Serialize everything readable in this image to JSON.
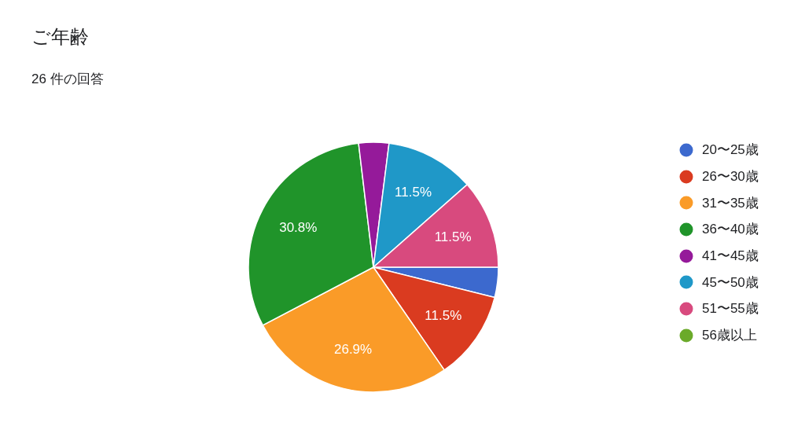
{
  "chart_data": {
    "type": "pie",
    "title": "ご年齢",
    "subtitle": "26 件の回答",
    "categories": [
      "20〜25歳",
      "26〜30歳",
      "31〜35歳",
      "36〜40歳",
      "41〜45歳",
      "45〜50歳",
      "51〜55歳",
      "56歳以上"
    ],
    "values": [
      3.9,
      11.5,
      26.9,
      30.8,
      3.9,
      11.5,
      11.5,
      0
    ],
    "colors": [
      "#3c69ce",
      "#da3b20",
      "#fa9b28",
      "#20942a",
      "#951a9a",
      "#1f98c8",
      "#d84a7e",
      "#6baa2a"
    ],
    "value_labels": [
      null,
      "11.5%",
      "26.9%",
      "30.8%",
      null,
      "11.5%",
      "11.5%",
      null
    ],
    "legend": "right"
  }
}
